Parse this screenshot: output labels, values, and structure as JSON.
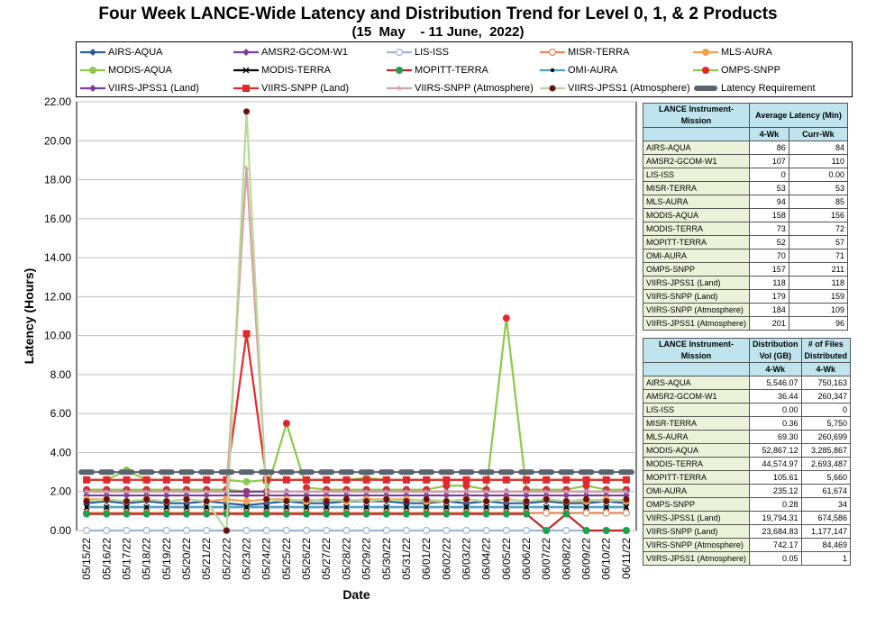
{
  "title": "Four Week LANCE-Wide Latency and Distribution Trend for Level 0, 1, & 2 Products",
  "subtitle": "(15  May    - 11 June,  2022)",
  "chart_data": {
    "type": "line",
    "xlabel": "Date",
    "ylabel": "Latency (Hours)",
    "ylim": [
      0,
      22
    ],
    "yticks": [
      "0.00",
      "2.00",
      "4.00",
      "6.00",
      "8.00",
      "10.00",
      "12.00",
      "14.00",
      "16.00",
      "18.00",
      "20.00",
      "22.00"
    ],
    "grid": true,
    "legend_position": "top",
    "categories": [
      "05/15/22",
      "05/16/22",
      "05/17/22",
      "05/18/22",
      "05/19/22",
      "05/20/22",
      "05/21/22",
      "05/22/22",
      "05/23/22",
      "05/24/22",
      "05/25/22",
      "05/26/22",
      "05/27/22",
      "05/28/22",
      "05/29/22",
      "05/30/22",
      "05/31/22",
      "06/01/22",
      "06/02/22",
      "06/03/22",
      "06/04/22",
      "06/05/22",
      "06/06/22",
      "06/07/22",
      "06/08/22",
      "06/09/22",
      "06/10/22",
      "06/11/22"
    ],
    "series": [
      {
        "name": "AIRS-AQUA",
        "color": "#2e5d9a",
        "marker": "diamond",
        "values": [
          1.4,
          1.5,
          1.4,
          1.5,
          1.4,
          1.4,
          1.5,
          1.4,
          1.3,
          1.4,
          1.5,
          1.4,
          1.4,
          1.5,
          1.5,
          1.5,
          1.4,
          1.4,
          1.5,
          1.4,
          1.5,
          1.4,
          1.4,
          1.5,
          1.4,
          1.4,
          1.5,
          1.4
        ]
      },
      {
        "name": "AMSR2-GCOM-W1",
        "color": "#7b3f99",
        "marker": "diamond",
        "values": [
          1.8,
          1.8,
          1.8,
          1.8,
          1.8,
          1.8,
          1.8,
          1.8,
          1.8,
          1.8,
          1.8,
          1.8,
          1.8,
          1.8,
          1.8,
          1.8,
          1.8,
          1.8,
          1.8,
          1.8,
          1.8,
          1.8,
          1.8,
          1.8,
          1.8,
          1.8,
          1.8,
          1.8
        ]
      },
      {
        "name": "LIS-ISS",
        "color": "#9fb3d9",
        "marker": "circle-open",
        "values": [
          0,
          0,
          0,
          0,
          0,
          0,
          0,
          0,
          0,
          0,
          0,
          0,
          0,
          0,
          0,
          0,
          0,
          0,
          0,
          0,
          0,
          0,
          0,
          0,
          0,
          0,
          0,
          0
        ]
      },
      {
        "name": "MISR-TERRA",
        "color": "#e8845a",
        "marker": "circle-open",
        "values": [
          0.9,
          0.9,
          0.9,
          0.9,
          0.9,
          0.9,
          0.9,
          0.9,
          0.9,
          0.9,
          0.9,
          0.9,
          0.9,
          0.9,
          0.9,
          0.9,
          0.9,
          0.9,
          0.9,
          0.9,
          0.9,
          0.9,
          0.9,
          0.9,
          0.9,
          0.9,
          0.9,
          0.9
        ]
      },
      {
        "name": "MLS-AURA",
        "color": "#f0a050",
        "marker": "circle",
        "values": [
          1.6,
          1.6,
          1.5,
          1.6,
          1.5,
          1.6,
          1.5,
          1.6,
          1.5,
          1.6,
          1.6,
          1.5,
          1.6,
          1.5,
          1.6,
          1.6,
          1.6,
          1.5,
          1.5,
          1.6,
          1.5,
          1.6,
          1.5,
          1.6,
          1.5,
          1.5,
          1.6,
          1.5
        ]
      },
      {
        "name": "MODIS-AQUA",
        "color": "#8cc84b",
        "marker": "circle",
        "values": [
          2.6,
          2.6,
          3.1,
          2.6,
          2.6,
          2.6,
          2.6,
          2.6,
          2.5,
          2.6,
          2.6,
          2.6,
          2.6,
          2.6,
          2.7,
          2.6,
          2.6,
          2.6,
          2.6,
          2.6,
          2.6,
          2.6,
          2.6,
          2.6,
          2.6,
          2.6,
          2.6,
          2.6
        ]
      },
      {
        "name": "MODIS-TERRA",
        "color": "#000000",
        "marker": "x",
        "values": [
          1.2,
          1.2,
          1.2,
          1.2,
          1.2,
          1.2,
          1.2,
          1.2,
          1.2,
          1.2,
          1.2,
          1.2,
          1.2,
          1.2,
          1.2,
          1.2,
          1.2,
          1.2,
          1.2,
          1.2,
          1.2,
          1.2,
          1.2,
          1.2,
          1.2,
          1.2,
          1.2,
          1.2
        ]
      },
      {
        "name": "MOPITT-TERRA",
        "color": "#c0272d",
        "marker": "circle",
        "values": [
          0.85,
          0.85,
          0.85,
          0.85,
          0.85,
          0.85,
          0.85,
          0.85,
          0.85,
          0.85,
          0.85,
          0.85,
          0.85,
          0.85,
          0.85,
          0.85,
          0.85,
          0.85,
          0.85,
          0.85,
          0.85,
          0.85,
          0.85,
          0,
          0.85,
          0,
          0,
          0
        ]
      },
      {
        "name": "OMI-AURA",
        "color": "#4ba3cf",
        "marker": "dot",
        "values": [
          1.2,
          1.2,
          1.2,
          1.2,
          1.2,
          1.2,
          1.2,
          1.2,
          1.2,
          1.2,
          1.2,
          1.2,
          1.2,
          1.2,
          1.2,
          1.2,
          1.2,
          1.2,
          1.2,
          1.2,
          1.2,
          1.2,
          1.2,
          1.2,
          1.2,
          1.2,
          1.2,
          1.2
        ]
      },
      {
        "name": "OMPS-SNPP",
        "color": "#8cc84b",
        "marker": "circle-red",
        "values": [
          2.1,
          2.1,
          2.1,
          2.1,
          2.1,
          2.1,
          2.1,
          2.1,
          2.0,
          2.0,
          5.5,
          2.2,
          2.1,
          2.1,
          2.1,
          2.1,
          2.1,
          2.1,
          2.3,
          2.3,
          2.1,
          10.9,
          2.1,
          2.1,
          2.1,
          2.3,
          2.1,
          2.1
        ]
      },
      {
        "name": "VIIRS-JPSS1 (Land)",
        "color": "#7b3f99",
        "marker": "diamond",
        "values": [
          2.0,
          2.0,
          2.0,
          2.0,
          2.0,
          2.0,
          2.0,
          2.0,
          2.0,
          2.0,
          2.0,
          2.0,
          2.0,
          2.0,
          2.0,
          2.0,
          2.0,
          2.0,
          2.0,
          2.0,
          2.0,
          2.0,
          2.0,
          2.0,
          2.0,
          2.0,
          2.0,
          2.0
        ]
      },
      {
        "name": "VIIRS-SNPP (Land)",
        "color": "#e3282b",
        "marker": "square",
        "values": [
          2.6,
          2.6,
          2.6,
          2.6,
          2.6,
          2.6,
          2.6,
          2.6,
          10.1,
          2.6,
          2.6,
          2.6,
          2.6,
          2.6,
          2.6,
          2.6,
          2.6,
          2.6,
          2.6,
          2.6,
          2.6,
          2.6,
          2.6,
          2.6,
          2.6,
          2.6,
          2.6,
          2.6
        ]
      },
      {
        "name": "VIIRS-SNPP (Atmosphere)",
        "color": "#d7a0a0",
        "marker": "asterisk",
        "values": [
          2.0,
          2.0,
          2.0,
          2.0,
          2.0,
          2.0,
          2.0,
          2.0,
          18.6,
          2.0,
          2.0,
          2.0,
          2.0,
          2.0,
          2.0,
          2.0,
          2.0,
          2.0,
          2.0,
          2.0,
          2.0,
          2.0,
          2.0,
          2.0,
          2.0,
          2.0,
          2.0,
          2.0
        ]
      },
      {
        "name": "VIIRS-JPSS1 (Atmosphere)",
        "color": "#b8d898",
        "marker": "circle-dark",
        "values": [
          1.5,
          1.6,
          1.5,
          1.6,
          1.5,
          1.6,
          1.5,
          0,
          21.5,
          1.6,
          1.5,
          1.6,
          1.5,
          1.6,
          1.5,
          1.6,
          1.5,
          1.6,
          1.5,
          1.6,
          1.5,
          1.6,
          1.5,
          1.6,
          1.5,
          1.6,
          1.5,
          1.6
        ]
      },
      {
        "name": "Latency Requirement",
        "color": "#5a6470",
        "marker": "dash",
        "values": [
          3,
          3,
          3,
          3,
          3,
          3,
          3,
          3,
          3,
          3,
          3,
          3,
          3,
          3,
          3,
          3,
          3,
          3,
          3,
          3,
          3,
          3,
          3,
          3,
          3,
          3,
          3,
          3
        ]
      }
    ]
  },
  "latency_table": {
    "header_col1": "LANCE Instrument-Mission",
    "header_col2": "Average Latency (Min)",
    "sub1": "4-Wk",
    "sub2": "Curr-Wk",
    "rows": [
      {
        "name": "AIRS-AQUA",
        "wk4": "86",
        "curr": "84"
      },
      {
        "name": "AMSR2-GCOM-W1",
        "wk4": "107",
        "curr": "110"
      },
      {
        "name": "LIS-ISS",
        "wk4": "0",
        "curr": "0.00"
      },
      {
        "name": "MISR-TERRA",
        "wk4": "53",
        "curr": "53"
      },
      {
        "name": "MLS-AURA",
        "wk4": "94",
        "curr": "85"
      },
      {
        "name": "MODIS-AQUA",
        "wk4": "158",
        "curr": "156"
      },
      {
        "name": "MODIS-TERRA",
        "wk4": "73",
        "curr": "72"
      },
      {
        "name": "MOPITT-TERRA",
        "wk4": "52",
        "curr": "57"
      },
      {
        "name": "OMI-AURA",
        "wk4": "70",
        "curr": "71"
      },
      {
        "name": "OMPS-SNPP",
        "wk4": "157",
        "curr": "211"
      },
      {
        "name": "VIIRS-JPSS1 (Land)",
        "wk4": "118",
        "curr": "118"
      },
      {
        "name": "VIIRS-SNPP (Land)",
        "wk4": "179",
        "curr": "159"
      },
      {
        "name": "VIIRS-SNPP (Atmosphere)",
        "wk4": "184",
        "curr": "109"
      },
      {
        "name": "VIIRS-JPSS1 (Atmosphere)",
        "wk4": "201",
        "curr": "96"
      }
    ]
  },
  "distribution_table": {
    "header_col1": "LANCE Instrument-Mission",
    "header_col2": "Distribution Vol (GB)",
    "header_col3": "# of Files Distributed",
    "sub1": "4-Wk",
    "sub2": "4-Wk",
    "rows": [
      {
        "name": "AIRS-AQUA",
        "vol": "5,546.07",
        "files": "750,163"
      },
      {
        "name": "AMSR2-GCOM-W1",
        "vol": "36.44",
        "files": "260,347"
      },
      {
        "name": "LIS-ISS",
        "vol": "0.00",
        "files": "0"
      },
      {
        "name": "MISR-TERRA",
        "vol": "0.36",
        "files": "5,750"
      },
      {
        "name": "MLS-AURA",
        "vol": "69.30",
        "files": "260,699"
      },
      {
        "name": "MODIS-AQUA",
        "vol": "52,867.12",
        "files": "3,285,867"
      },
      {
        "name": "MODIS-TERRA",
        "vol": "44,574.97",
        "files": "2,693,487"
      },
      {
        "name": "MOPITT-TERRA",
        "vol": "105.61",
        "files": "5,660"
      },
      {
        "name": "OMI-AURA",
        "vol": "235.12",
        "files": "61,674"
      },
      {
        "name": "OMPS-SNPP",
        "vol": "0.28",
        "files": "34"
      },
      {
        "name": "VIIRS-JPSS1 (Land)",
        "vol": "19,794.31",
        "files": "674,586"
      },
      {
        "name": "VIIRS-SNPP (Land)",
        "vol": "23,684.83",
        "files": "1,177,147"
      },
      {
        "name": "VIIRS-SNPP (Atmosphere)",
        "vol": "742.17",
        "files": "84,469"
      },
      {
        "name": "VIIRS-JPSS1 (Atmosphere)",
        "vol": "0.05",
        "files": "1"
      }
    ]
  }
}
